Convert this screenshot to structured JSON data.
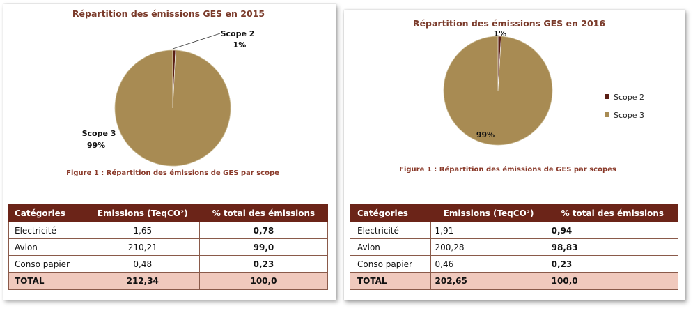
{
  "chart_data": [
    {
      "type": "pie",
      "title": "Répartition des émissions GES en 2015",
      "caption": "Figure 1 : Répartition des émissions de GES par scope",
      "slices": [
        {
          "name": "Scope 2",
          "label": "1%",
          "value": 0.78,
          "color": "#5a1e14"
        },
        {
          "name": "Scope 3",
          "label": "99%",
          "value": 99.22,
          "color": "#a88b53"
        }
      ],
      "legend": "none"
    },
    {
      "type": "pie",
      "title": "Répartition des émissions GES en 2016",
      "caption": "Figure 1 : Répartition des émissions de GES par scopes",
      "slices": [
        {
          "name": "Scope 2",
          "label": "1%",
          "value": 0.94,
          "color": "#5a1e14"
        },
        {
          "name": "Scope 3",
          "label": "99%",
          "value": 99.06,
          "color": "#a88b53"
        }
      ],
      "legend": "right"
    },
    {
      "type": "table",
      "columns": [
        "Catégories",
        "Emissions (TeqCO²)",
        "% total des émissions"
      ],
      "rows": [
        [
          "Electricité",
          "1,65",
          "0,78"
        ],
        [
          "Avion",
          "210,21",
          "99,0"
        ],
        [
          "Conso papier",
          "0,48",
          "0,23"
        ]
      ],
      "total": [
        "TOTAL",
        "212,34",
        "100,0"
      ]
    },
    {
      "type": "table",
      "columns": [
        "Catégories",
        "Emissions (TeqCO²)",
        "% total des émissions"
      ],
      "rows": [
        [
          "Electricité",
          "1,91",
          "0,94"
        ],
        [
          "Avion",
          "200,28",
          "98,83"
        ],
        [
          "Conso papier",
          "0,46",
          "0,23"
        ]
      ],
      "total": [
        "TOTAL",
        "202,65",
        "100,0"
      ]
    }
  ],
  "colors": {
    "header_bg": "#6b2418",
    "total_bg": "#f0c9bd",
    "title_text": "#7a3a2a"
  }
}
